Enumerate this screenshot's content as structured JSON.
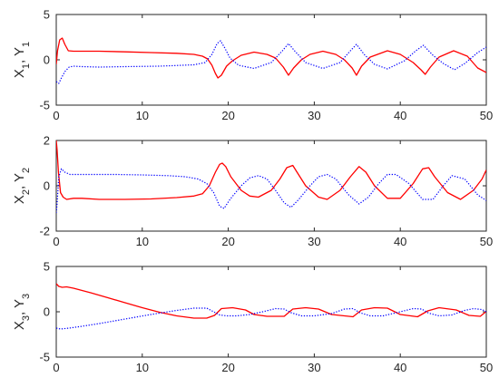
{
  "chart_data": [
    {
      "type": "line",
      "ylabel": {
        "parts": [
          {
            "t": "X",
            "sub": false
          },
          {
            "t": "1",
            "sub": true
          },
          {
            "t": ", Y",
            "sub": false
          },
          {
            "t": "1",
            "sub": true
          }
        ]
      },
      "xlim": [
        0,
        50
      ],
      "ylim": [
        -5,
        5
      ],
      "xticks": [
        0,
        10,
        20,
        30,
        40,
        50
      ],
      "yticks": [
        -5,
        0,
        5
      ],
      "grid": false,
      "series": [
        {
          "style": "solid",
          "color": "#ff0000",
          "x": [
            0,
            0.15,
            0.4,
            0.7,
            1.0,
            1.4,
            2,
            3,
            5,
            8,
            11,
            14,
            16,
            17,
            17.6,
            18.1,
            18.5,
            18.8,
            19.2,
            19.8,
            20.5,
            21.5,
            23,
            24.5,
            25.5,
            26.4,
            27,
            27.6,
            28.5,
            29.5,
            31,
            32.5,
            33.5,
            34.4,
            34.9,
            35.5,
            36.5,
            38.5,
            40,
            41.5,
            42.4,
            42.9,
            43.5,
            44.5,
            46.2,
            47.8,
            49,
            50
          ],
          "y": [
            -0.5,
            1.0,
            2.2,
            2.4,
            1.7,
            1.0,
            0.95,
            0.95,
            0.95,
            0.88,
            0.8,
            0.72,
            0.6,
            0.4,
            0.1,
            -0.6,
            -1.5,
            -2.0,
            -1.7,
            -0.7,
            -0.1,
            0.5,
            0.85,
            0.6,
            0.2,
            -0.8,
            -1.7,
            -0.9,
            0.0,
            0.6,
            0.95,
            0.6,
            0.0,
            -0.9,
            -1.7,
            -0.7,
            0.3,
            1.0,
            0.6,
            -0.3,
            -1.1,
            -1.6,
            -0.8,
            0.3,
            1.0,
            0.4,
            -0.9,
            -1.4
          ]
        },
        {
          "style": "dotted",
          "color": "#0000ff",
          "x": [
            0,
            0.3,
            0.6,
            1.0,
            1.5,
            2,
            3,
            5,
            8,
            12,
            16,
            17.3,
            18.1,
            18.7,
            19.1,
            19.6,
            20.2,
            21.2,
            23,
            25,
            26.3,
            27,
            27.8,
            29,
            31,
            33,
            34.2,
            34.9,
            35.8,
            37,
            38.5,
            40.5,
            41.8,
            42.7,
            43.8,
            45,
            46.3,
            47.5,
            49,
            50
          ],
          "y": [
            -2.4,
            -2.6,
            -2.0,
            -1.3,
            -0.8,
            -0.7,
            -0.75,
            -0.8,
            -0.75,
            -0.7,
            -0.55,
            -0.3,
            0.6,
            1.8,
            2.1,
            1.3,
            0.2,
            -0.6,
            -0.95,
            -0.3,
            1.0,
            1.8,
            0.9,
            -0.3,
            -0.95,
            -0.3,
            1.0,
            1.7,
            0.6,
            -0.5,
            -1.0,
            -0.1,
            1.0,
            1.6,
            0.5,
            -0.4,
            -1.1,
            -0.4,
            0.8,
            1.4
          ]
        }
      ]
    },
    {
      "type": "line",
      "ylabel": {
        "parts": [
          {
            "t": "X",
            "sub": false
          },
          {
            "t": "2",
            "sub": true
          },
          {
            "t": ", Y",
            "sub": false
          },
          {
            "t": "2",
            "sub": true
          }
        ]
      },
      "xlim": [
        0,
        50
      ],
      "ylim": [
        -2,
        2
      ],
      "xticks": [
        0,
        10,
        20,
        30,
        40,
        50
      ],
      "yticks": [
        -2,
        0,
        2
      ],
      "grid": false,
      "series": [
        {
          "style": "solid",
          "color": "#ff0000",
          "x": [
            0,
            0.1,
            0.25,
            0.5,
            0.8,
            1.2,
            2,
            3,
            5,
            8,
            11,
            14,
            16,
            17,
            17.8,
            18.5,
            19.0,
            19.3,
            19.7,
            20.3,
            21.5,
            22.5,
            23.5,
            25,
            26,
            26.8,
            27.5,
            28,
            29,
            30.5,
            31.5,
            33,
            34.2,
            35.2,
            36,
            37,
            38.5,
            40,
            41.5,
            42.6,
            43.3,
            44,
            45.5,
            47,
            48.5,
            49.5,
            50
          ],
          "y": [
            2.0,
            1.6,
            0.6,
            -0.3,
            -0.5,
            -0.6,
            -0.55,
            -0.55,
            -0.6,
            -0.6,
            -0.58,
            -0.52,
            -0.45,
            -0.35,
            0.0,
            0.6,
            0.95,
            1.0,
            0.85,
            0.4,
            -0.2,
            -0.45,
            -0.5,
            -0.2,
            0.3,
            0.8,
            0.9,
            0.6,
            0.0,
            -0.5,
            -0.6,
            -0.2,
            0.4,
            0.85,
            0.6,
            0.0,
            -0.55,
            -0.55,
            0.1,
            0.75,
            0.8,
            0.4,
            -0.3,
            -0.6,
            -0.2,
            0.3,
            0.7
          ]
        },
        {
          "style": "dotted",
          "color": "#0000ff",
          "x": [
            0,
            0.1,
            0.3,
            0.6,
            1.0,
            1.6,
            2.5,
            4,
            7,
            10,
            13,
            15,
            16.5,
            17.5,
            18.3,
            19.0,
            19.5,
            20.2,
            21.5,
            22.5,
            23.5,
            24.5,
            25.5,
            26.5,
            27.3,
            28.2,
            29.5,
            30.5,
            31.5,
            32.5,
            34,
            35.2,
            36.3,
            37.5,
            38.5,
            39.5,
            41,
            42.6,
            43.8,
            45,
            46,
            47.5,
            49,
            50
          ],
          "y": [
            -1.2,
            -0.8,
            0.4,
            0.75,
            0.6,
            0.5,
            0.5,
            0.5,
            0.5,
            0.48,
            0.45,
            0.4,
            0.3,
            0.1,
            -0.3,
            -0.9,
            -1.0,
            -0.6,
            0.0,
            0.35,
            0.45,
            0.3,
            -0.2,
            -0.75,
            -0.95,
            -0.6,
            0.0,
            0.4,
            0.5,
            0.3,
            -0.4,
            -0.8,
            -0.5,
            0.1,
            0.5,
            0.5,
            0.1,
            -0.6,
            -0.6,
            0.0,
            0.45,
            0.3,
            -0.4,
            -0.65
          ]
        }
      ]
    },
    {
      "type": "line",
      "ylabel": {
        "parts": [
          {
            "t": "X",
            "sub": false
          },
          {
            "t": "3",
            "sub": true
          },
          {
            "t": ", Y",
            "sub": false
          },
          {
            "t": "3",
            "sub": true
          }
        ]
      },
      "xlim": [
        0,
        50
      ],
      "ylim": [
        -5,
        5
      ],
      "xticks": [
        0,
        10,
        20,
        30,
        40,
        50
      ],
      "yticks": [
        -5,
        0,
        5
      ],
      "grid": false,
      "series": [
        {
          "style": "solid",
          "color": "#ff0000",
          "x": [
            0,
            0.3,
            0.7,
            1.2,
            2,
            4,
            6,
            8,
            10,
            12,
            14,
            16,
            17.5,
            18.4,
            19.2,
            20.5,
            22,
            23,
            24.5,
            26.5,
            27.5,
            29,
            30.5,
            32,
            34.5,
            35.5,
            37,
            38.5,
            40,
            42,
            43.2,
            44.5,
            46.5,
            48,
            49.3,
            50
          ],
          "y": [
            3.1,
            2.8,
            2.7,
            2.75,
            2.6,
            2.1,
            1.55,
            1.0,
            0.45,
            -0.05,
            -0.45,
            -0.7,
            -0.7,
            -0.4,
            0.35,
            0.45,
            0.2,
            -0.3,
            -0.5,
            -0.5,
            0.3,
            0.45,
            0.3,
            -0.3,
            -0.55,
            0.2,
            0.45,
            0.4,
            -0.3,
            -0.55,
            0.1,
            0.45,
            0.2,
            -0.4,
            -0.5,
            0.05
          ]
        },
        {
          "style": "dotted",
          "color": "#0000ff",
          "x": [
            0,
            0.5,
            1.5,
            3,
            5,
            8,
            11,
            14,
            16,
            17.5,
            18.3,
            19,
            19.8,
            21,
            22.5,
            24,
            25.5,
            26.5,
            27.3,
            28.5,
            30,
            32,
            33.5,
            34.5,
            35.3,
            36.5,
            38,
            40,
            41.5,
            42.5,
            43.3,
            44.5,
            46,
            47.5,
            48.5,
            49.5,
            50
          ],
          "y": [
            -1.8,
            -1.9,
            -1.8,
            -1.6,
            -1.3,
            -0.8,
            -0.3,
            0.15,
            0.4,
            0.4,
            0.0,
            -0.35,
            -0.45,
            -0.45,
            -0.3,
            0.0,
            0.35,
            0.3,
            -0.1,
            -0.45,
            -0.45,
            -0.2,
            0.3,
            0.35,
            -0.1,
            -0.45,
            -0.45,
            0.0,
            0.35,
            0.3,
            -0.15,
            -0.45,
            -0.35,
            0.15,
            0.35,
            0.25,
            0.0
          ]
        }
      ]
    }
  ]
}
